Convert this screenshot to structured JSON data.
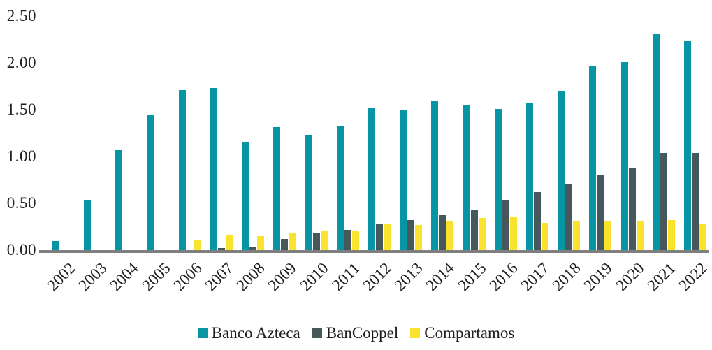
{
  "chart_data": {
    "type": "bar",
    "title": "",
    "xlabel": "",
    "ylabel": "",
    "categories": [
      "2002",
      "2003",
      "2004",
      "2005",
      "2006",
      "2007",
      "2008",
      "2009",
      "2010",
      "2011",
      "2012",
      "2013",
      "2014",
      "2015",
      "2016",
      "2017",
      "2018",
      "2019",
      "2020",
      "2021",
      "2022"
    ],
    "series": [
      {
        "name": "Banco Azteca",
        "color": "#0794a4",
        "values": [
          0.1,
          0.53,
          1.07,
          1.45,
          1.71,
          1.73,
          1.16,
          1.31,
          1.23,
          1.33,
          1.52,
          1.5,
          1.6,
          1.55,
          1.51,
          1.57,
          1.7,
          1.96,
          2.01,
          2.31,
          2.24
        ]
      },
      {
        "name": "BanCoppel",
        "color": "#46585b",
        "values": [
          0,
          0,
          0,
          0,
          0,
          0.02,
          0.04,
          0.12,
          0.18,
          0.22,
          0.28,
          0.32,
          0.37,
          0.43,
          0.53,
          0.62,
          0.7,
          0.8,
          0.88,
          1.04,
          1.04
        ]
      },
      {
        "name": "Compartamos",
        "color": "#fae32c",
        "values": [
          0,
          0,
          0,
          0,
          0.11,
          0.16,
          0.15,
          0.19,
          0.2,
          0.21,
          0.28,
          0.27,
          0.31,
          0.34,
          0.36,
          0.29,
          0.31,
          0.31,
          0.31,
          0.32,
          0.28
        ]
      }
    ],
    "ylim": [
      0,
      2.5
    ],
    "ytick_labels": [
      "0.00",
      "0.50",
      "1.00",
      "1.50",
      "2.00",
      "2.50"
    ],
    "ytick_values": [
      0,
      0.5,
      1.0,
      1.5,
      2.0,
      2.5
    ],
    "grid": false,
    "legend_position": "bottom",
    "axis_color": "#7f7f7f",
    "text_color": "#1f1f1f"
  }
}
